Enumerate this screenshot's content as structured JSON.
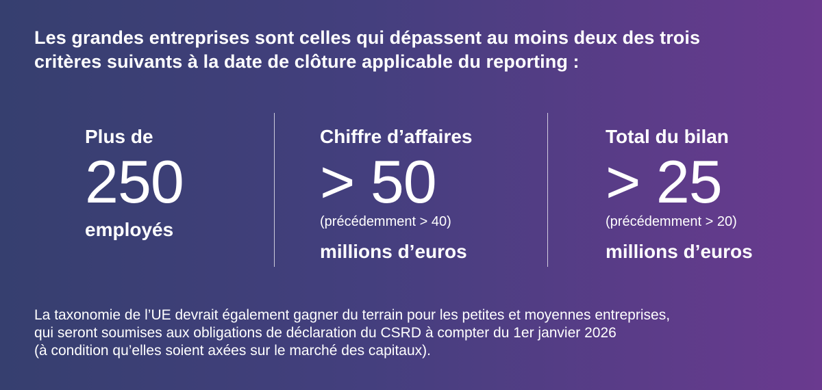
{
  "intro": {
    "line1": "Les grandes entreprises sont celles qui dépassent au moins deux des trois",
    "line2": "critères suivants à la date de clôture applicable du reporting :"
  },
  "criteria": [
    {
      "label_top": "Plus de",
      "value": "250",
      "label_bottom": "employés"
    },
    {
      "label_top": "Chiffre d’affaires",
      "value": "> 50",
      "note": "(précédemment > 40)",
      "label_bottom": "millions d’euros"
    },
    {
      "label_top": "Total du bilan",
      "value": "> 25",
      "note": "(précédemment > 20)",
      "label_bottom": "millions d’euros"
    }
  ],
  "footer": {
    "line1": "La taxonomie de l’UE devrait également gagner du terrain pour les petites et moyennes entreprises,",
    "line2": "qui seront soumises aux obligations de déclaration du CSRD à compter du 1er janvier 2026",
    "line3": "(à condition qu’elles soient axées sur le marché des capitaux)."
  },
  "colors": {
    "gradient_start": "#363f6f",
    "gradient_end": "#6a3a8f",
    "text": "#ffffff"
  }
}
